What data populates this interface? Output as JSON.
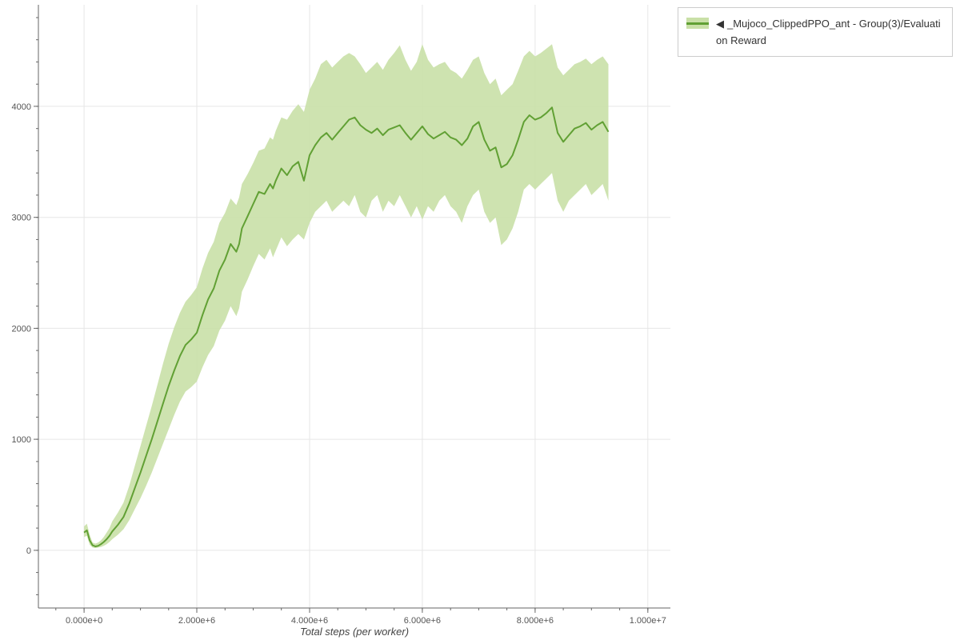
{
  "legend": {
    "toggle_icon": "◀",
    "label": "_Mujoco_ClippedPPO_ant - Group(3)/Evaluation Reward",
    "border_color": "#cccccc",
    "background": "#ffffff"
  },
  "chart_data": {
    "type": "line",
    "title": "",
    "xlabel": "Total steps (per worker)",
    "ylabel": "",
    "grid": true,
    "grid_color": "#e6e6e6",
    "axis_color": "#666666",
    "tick_label_color": "#555555",
    "legend_position": "top-right",
    "xlim": [
      -810000,
      10400000
    ],
    "ylim": [
      -520,
      4915
    ],
    "x_ticks": [
      {
        "value": 0,
        "label": "0.000e+0"
      },
      {
        "value": 2000000,
        "label": "2.000e+6"
      },
      {
        "value": 4000000,
        "label": "4.000e+6"
      },
      {
        "value": 6000000,
        "label": "6.000e+6"
      },
      {
        "value": 8000000,
        "label": "8.000e+6"
      },
      {
        "value": 10000000,
        "label": "1.000e+7"
      }
    ],
    "y_ticks": [
      {
        "value": 0,
        "label": "0"
      },
      {
        "value": 1000,
        "label": "1000"
      },
      {
        "value": 2000,
        "label": "2000"
      },
      {
        "value": 3000,
        "label": "3000"
      },
      {
        "value": 4000,
        "label": "4000"
      }
    ],
    "x_minor_step": 500000,
    "y_minor_step": 200,
    "series": [
      {
        "name": "_Mujoco_ClippedPPO_ant - Group(3)/Evaluation Reward",
        "color": "#61a034",
        "band_color": "#c9e0a7",
        "band_opacity": 0.9,
        "x": [
          0,
          50000,
          100000,
          150000,
          200000,
          250000,
          300000,
          350000,
          400000,
          450000,
          500000,
          600000,
          700000,
          800000,
          900000,
          1000000,
          1100000,
          1200000,
          1300000,
          1400000,
          1500000,
          1600000,
          1700000,
          1800000,
          1900000,
          2000000,
          2100000,
          2200000,
          2300000,
          2400000,
          2500000,
          2600000,
          2700000,
          2750000,
          2800000,
          2900000,
          3000000,
          3100000,
          3200000,
          3300000,
          3350000,
          3400000,
          3500000,
          3600000,
          3700000,
          3800000,
          3900000,
          4000000,
          4100000,
          4200000,
          4300000,
          4400000,
          4500000,
          4600000,
          4700000,
          4800000,
          4900000,
          5000000,
          5100000,
          5200000,
          5300000,
          5400000,
          5500000,
          5600000,
          5700000,
          5800000,
          5900000,
          6000000,
          6100000,
          6200000,
          6300000,
          6400000,
          6500000,
          6600000,
          6700000,
          6800000,
          6900000,
          7000000,
          7100000,
          7200000,
          7300000,
          7400000,
          7500000,
          7600000,
          7700000,
          7800000,
          7900000,
          8000000,
          8100000,
          8200000,
          8300000,
          8400000,
          8500000,
          8600000,
          8700000,
          8800000,
          8900000,
          9000000,
          9100000,
          9200000,
          9300000
        ],
        "mean": [
          160,
          180,
          90,
          45,
          35,
          40,
          55,
          75,
          100,
          130,
          170,
          230,
          300,
          420,
          560,
          700,
          850,
          1000,
          1160,
          1320,
          1480,
          1620,
          1750,
          1850,
          1900,
          1960,
          2120,
          2260,
          2360,
          2520,
          2620,
          2760,
          2690,
          2760,
          2900,
          3010,
          3120,
          3230,
          3210,
          3300,
          3260,
          3330,
          3440,
          3380,
          3460,
          3500,
          3330,
          3560,
          3650,
          3720,
          3760,
          3700,
          3760,
          3820,
          3880,
          3900,
          3830,
          3790,
          3760,
          3800,
          3740,
          3790,
          3810,
          3830,
          3760,
          3700,
          3760,
          3820,
          3750,
          3710,
          3740,
          3770,
          3720,
          3700,
          3650,
          3710,
          3820,
          3860,
          3700,
          3600,
          3630,
          3450,
          3480,
          3560,
          3700,
          3860,
          3920,
          3880,
          3900,
          3940,
          3990,
          3760,
          3680,
          3740,
          3800,
          3820,
          3850,
          3790,
          3830,
          3860,
          3770
        ],
        "lower": [
          120,
          130,
          50,
          25,
          20,
          25,
          30,
          40,
          55,
          75,
          100,
          140,
          190,
          270,
          370,
          470,
          580,
          700,
          830,
          960,
          1090,
          1220,
          1340,
          1430,
          1470,
          1520,
          1650,
          1760,
          1840,
          1980,
          2070,
          2200,
          2110,
          2180,
          2330,
          2440,
          2560,
          2670,
          2620,
          2720,
          2640,
          2700,
          2820,
          2740,
          2800,
          2850,
          2800,
          2950,
          3050,
          3100,
          3150,
          3050,
          3100,
          3150,
          3100,
          3200,
          3050,
          3000,
          3150,
          3200,
          3050,
          3150,
          3100,
          3200,
          3100,
          3000,
          3100,
          2980,
          3100,
          3050,
          3150,
          3200,
          3100,
          3050,
          2950,
          3100,
          3200,
          3250,
          3050,
          2950,
          3000,
          2750,
          2800,
          2900,
          3050,
          3250,
          3300,
          3250,
          3300,
          3350,
          3400,
          3150,
          3050,
          3150,
          3200,
          3250,
          3300,
          3200,
          3250,
          3300,
          3150
        ],
        "upper": [
          215,
          240,
          140,
          70,
          60,
          70,
          90,
          120,
          160,
          200,
          260,
          340,
          430,
          580,
          760,
          940,
          1120,
          1300,
          1490,
          1680,
          1860,
          2010,
          2140,
          2240,
          2300,
          2370,
          2540,
          2680,
          2780,
          2950,
          3040,
          3170,
          3110,
          3180,
          3300,
          3390,
          3490,
          3600,
          3620,
          3720,
          3700,
          3780,
          3900,
          3880,
          3960,
          4020,
          3950,
          4150,
          4250,
          4380,
          4420,
          4350,
          4400,
          4450,
          4480,
          4450,
          4380,
          4300,
          4350,
          4400,
          4330,
          4420,
          4480,
          4550,
          4420,
          4320,
          4400,
          4560,
          4420,
          4350,
          4380,
          4400,
          4330,
          4300,
          4250,
          4330,
          4420,
          4450,
          4300,
          4200,
          4250,
          4100,
          4150,
          4200,
          4320,
          4450,
          4500,
          4450,
          4480,
          4520,
          4560,
          4350,
          4280,
          4330,
          4380,
          4400,
          4430,
          4380,
          4420,
          4450,
          4380
        ]
      }
    ]
  }
}
